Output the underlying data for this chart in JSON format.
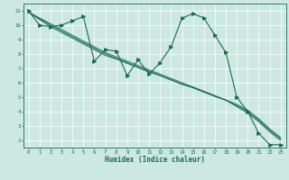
{
  "xlabel": "Humidex (Indice chaleur)",
  "bg_color": "#cce8e0",
  "line_color": "#1a6b5a",
  "grid_color": "#ffffff",
  "xlim": [
    -0.5,
    23.5
  ],
  "ylim": [
    1.5,
    11.5
  ],
  "xticks": [
    0,
    1,
    2,
    3,
    4,
    5,
    6,
    7,
    8,
    9,
    10,
    11,
    12,
    13,
    14,
    15,
    16,
    17,
    18,
    19,
    20,
    21,
    22,
    23
  ],
  "yticks": [
    2,
    3,
    4,
    5,
    6,
    7,
    8,
    9,
    10,
    11
  ],
  "x_data": [
    0,
    1,
    2,
    3,
    4,
    5,
    6,
    7,
    8,
    9,
    10,
    11,
    12,
    13,
    14,
    15,
    16,
    17,
    18,
    19,
    20,
    21,
    22,
    23
  ],
  "y_main": [
    11,
    10,
    9.9,
    10.0,
    10.3,
    10.6,
    7.5,
    8.3,
    8.2,
    6.5,
    7.6,
    6.6,
    7.4,
    8.5,
    10.5,
    10.8,
    10.5,
    9.3,
    8.1,
    5.0,
    4.0,
    2.5,
    1.7,
    1.7
  ],
  "y_line1": [
    10.9,
    10.5,
    10.1,
    9.7,
    9.3,
    8.9,
    8.5,
    8.1,
    7.8,
    7.5,
    7.2,
    6.9,
    6.6,
    6.3,
    6.0,
    5.7,
    5.4,
    5.1,
    4.8,
    4.5,
    4.1,
    3.5,
    2.8,
    2.2
  ],
  "y_line2": [
    10.9,
    10.45,
    10.0,
    9.6,
    9.2,
    8.8,
    8.4,
    8.0,
    7.7,
    7.4,
    7.1,
    6.8,
    6.5,
    6.2,
    5.9,
    5.7,
    5.4,
    5.1,
    4.8,
    4.4,
    4.0,
    3.4,
    2.7,
    2.1
  ],
  "y_line3": [
    10.9,
    10.4,
    9.9,
    9.5,
    9.1,
    8.7,
    8.3,
    7.9,
    7.65,
    7.35,
    7.05,
    6.75,
    6.5,
    6.2,
    5.9,
    5.65,
    5.35,
    5.05,
    4.8,
    4.35,
    3.9,
    3.3,
    2.6,
    2.0
  ]
}
